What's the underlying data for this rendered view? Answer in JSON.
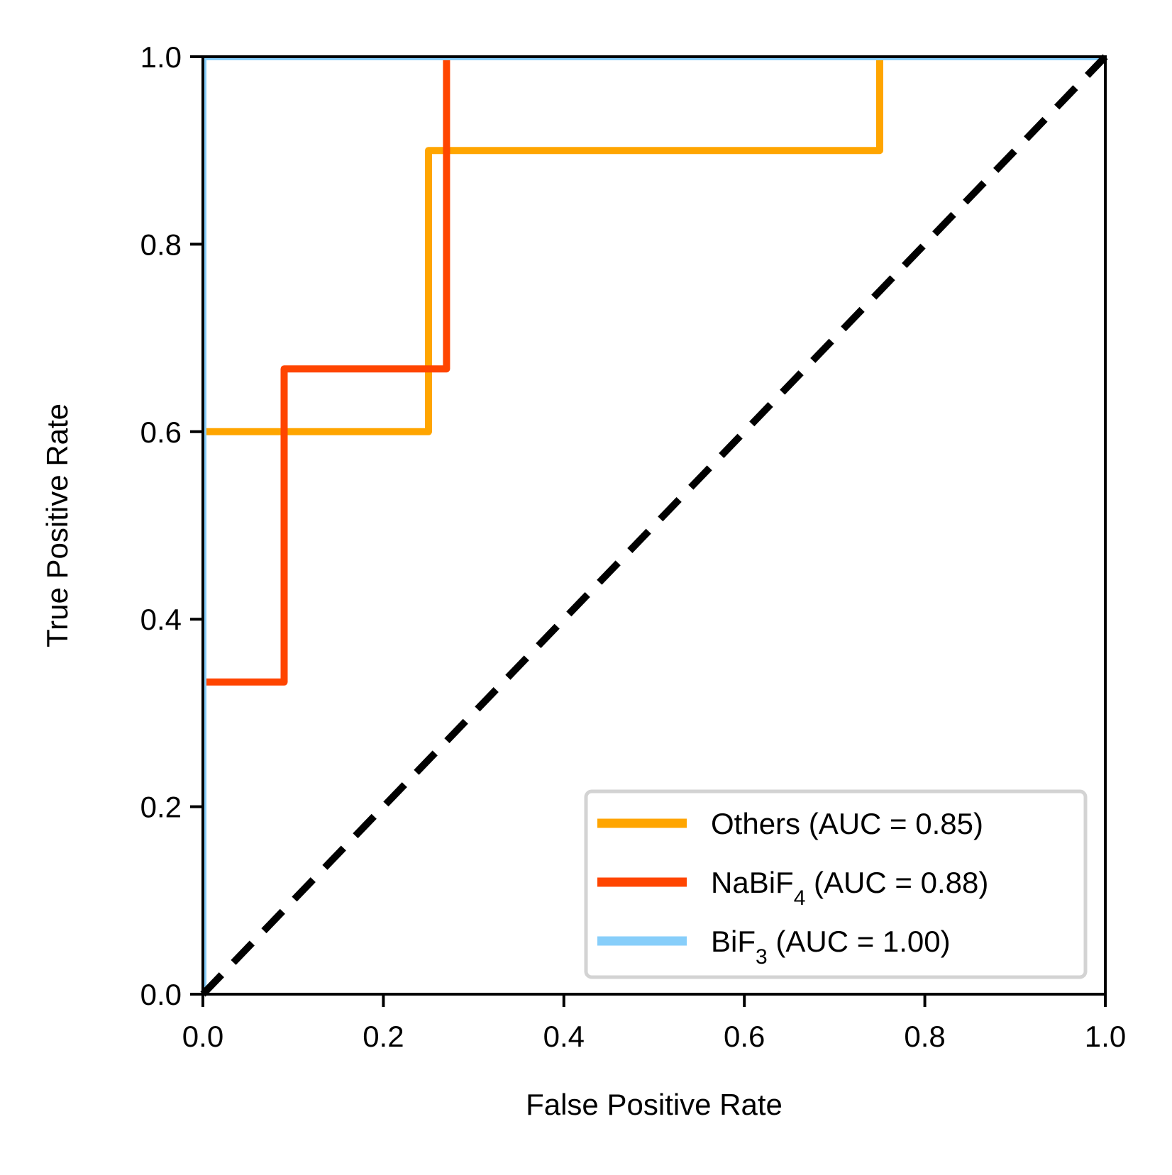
{
  "chart_data": {
    "type": "line",
    "title": "",
    "xlabel": "False Positive Rate",
    "ylabel": "True Positive Rate",
    "xlim": [
      0.0,
      1.0
    ],
    "ylim": [
      0.0,
      1.0
    ],
    "xticks": [
      "0.0",
      "0.2",
      "0.4",
      "0.6",
      "0.8",
      "1.0"
    ],
    "yticks": [
      "0.0",
      "0.2",
      "0.4",
      "0.6",
      "0.8",
      "1.0"
    ],
    "grid": false,
    "legend_position": "lower-right",
    "series": [
      {
        "name": "Others (AUC = 0.85)",
        "legend": {
          "main": "Others",
          "sub": "",
          "rest": " (AUC = 0.85)"
        },
        "color": "#FFA500",
        "x": [
          0.0,
          0.0,
          0.25,
          0.25,
          0.75,
          0.75,
          1.0
        ],
        "y": [
          0.0,
          0.6,
          0.6,
          0.9,
          0.9,
          1.0,
          1.0
        ]
      },
      {
        "name": "NaBiF4 (AUC = 0.88)",
        "legend": {
          "main": "NaBiF",
          "sub": "4",
          "rest": " (AUC = 0.88)"
        },
        "color": "#FF4500",
        "x": [
          0.0,
          0.0,
          0.09,
          0.09,
          0.27,
          0.27,
          1.0
        ],
        "y": [
          0.0,
          0.333,
          0.333,
          0.667,
          0.667,
          1.0,
          1.0
        ]
      },
      {
        "name": "BiF3 (AUC = 1.00)",
        "legend": {
          "main": "BiF",
          "sub": "3",
          "rest": " (AUC = 1.00)"
        },
        "color": "#87CEFA",
        "x": [
          0.0,
          0.0,
          1.0
        ],
        "y": [
          0.0,
          1.0,
          1.0
        ]
      }
    ],
    "reference_line": {
      "x": [
        0.0,
        1.0
      ],
      "y": [
        0.0,
        1.0
      ],
      "style": "dashed",
      "color": "#000000"
    }
  }
}
